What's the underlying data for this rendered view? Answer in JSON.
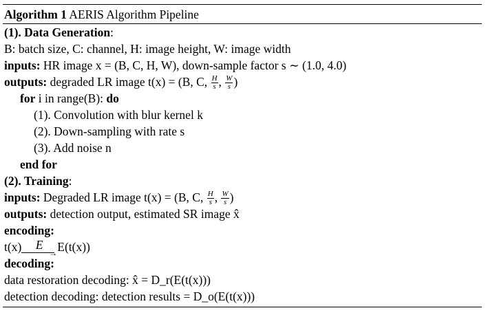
{
  "algorithm": {
    "label": "Algorithm 1",
    "title": "AERIS Algorithm Pipeline"
  },
  "section1": {
    "heading": "(1). Data Generation",
    "heading_suffix": ":",
    "definitions": "B: batch size, C: channel, H: image height, W: image width",
    "inputs_kw": "inputs:",
    "inputs_text": "HR image x = (B, C, H, W), down-sample factor s ∼ (1.0, 4.0)",
    "outputs_kw": "outputs:",
    "outputs_text_pre": "degraded LR image t(x) = (B, C, ",
    "frac1_num": "H",
    "frac1_den": "s",
    "frac_sep": ", ",
    "frac2_num": "W",
    "frac2_den": "s",
    "outputs_text_post": ")",
    "for_kw": "for",
    "for_text": "i in range(B):",
    "do_kw": "do",
    "step1": "(1). Convolution with blur kernel k",
    "step2": "(2). Down-sampling with rate s",
    "step3": "(3). Add noise n",
    "endfor_kw": "end for"
  },
  "section2": {
    "heading": "(2). Training",
    "heading_suffix": ":",
    "inputs_kw": "inputs:",
    "inputs_text_pre": "Degraded LR image t(x) = (B, C, ",
    "frac1_num": "H",
    "frac1_den": "s",
    "frac_sep": ", ",
    "frac2_num": "W",
    "frac2_den": "s",
    "inputs_text_post": ")",
    "outputs_kw": "outputs:",
    "outputs_text": "detection output, estimated SR image x̂",
    "encoding_kw": "encoding:",
    "enc_left": "t(x)",
    "enc_arrow_label": "E",
    "enc_arrow_head": "→",
    "enc_right": "E(t(x))",
    "decoding_kw": "decoding:",
    "restoration": "data restoration decoding: x̂ = D_r(E(t(x)))",
    "detection": "detection decoding: detection results = D_o(E(t(x)))"
  }
}
